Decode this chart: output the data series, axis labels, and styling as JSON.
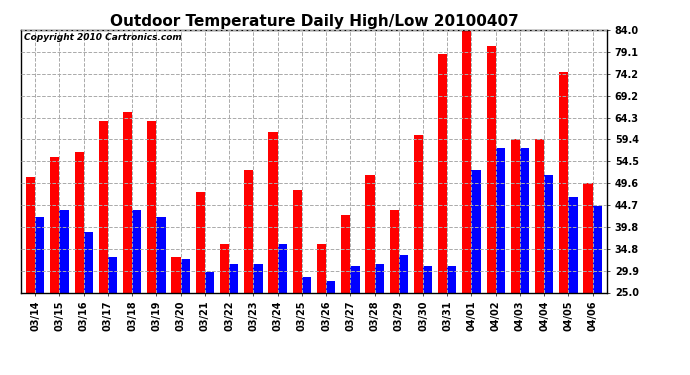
{
  "title": "Outdoor Temperature Daily High/Low 20100407",
  "copyright": "Copyright 2010 Cartronics.com",
  "categories": [
    "03/14",
    "03/15",
    "03/16",
    "03/17",
    "03/18",
    "03/19",
    "03/20",
    "03/21",
    "03/22",
    "03/23",
    "03/24",
    "03/25",
    "03/26",
    "03/27",
    "03/28",
    "03/29",
    "03/30",
    "03/31",
    "04/01",
    "04/02",
    "04/03",
    "04/04",
    "04/05",
    "04/06"
  ],
  "highs": [
    51.0,
    55.5,
    56.5,
    63.5,
    65.5,
    63.5,
    33.0,
    47.5,
    36.0,
    52.5,
    61.0,
    48.0,
    36.0,
    42.5,
    51.5,
    43.5,
    60.5,
    78.5,
    84.5,
    80.5,
    59.5,
    59.5,
    74.5,
    49.5
  ],
  "lows": [
    42.0,
    43.5,
    38.5,
    33.0,
    43.5,
    42.0,
    32.5,
    29.5,
    31.5,
    31.5,
    36.0,
    28.5,
    27.5,
    31.0,
    31.5,
    33.5,
    31.0,
    31.0,
    52.5,
    57.5,
    57.5,
    51.5,
    46.5,
    44.5
  ],
  "high_color": "#ff0000",
  "low_color": "#0000ff",
  "bg_color": "#ffffff",
  "plot_bg_color": "#ffffff",
  "grid_color": "#aaaaaa",
  "ymin": 25.0,
  "ymax": 84.0,
  "yticks": [
    25.0,
    29.9,
    34.8,
    39.8,
    44.7,
    49.6,
    54.5,
    59.4,
    64.3,
    69.2,
    74.2,
    79.1,
    84.0
  ],
  "title_fontsize": 11,
  "tick_fontsize": 7,
  "copyright_fontsize": 6.5
}
